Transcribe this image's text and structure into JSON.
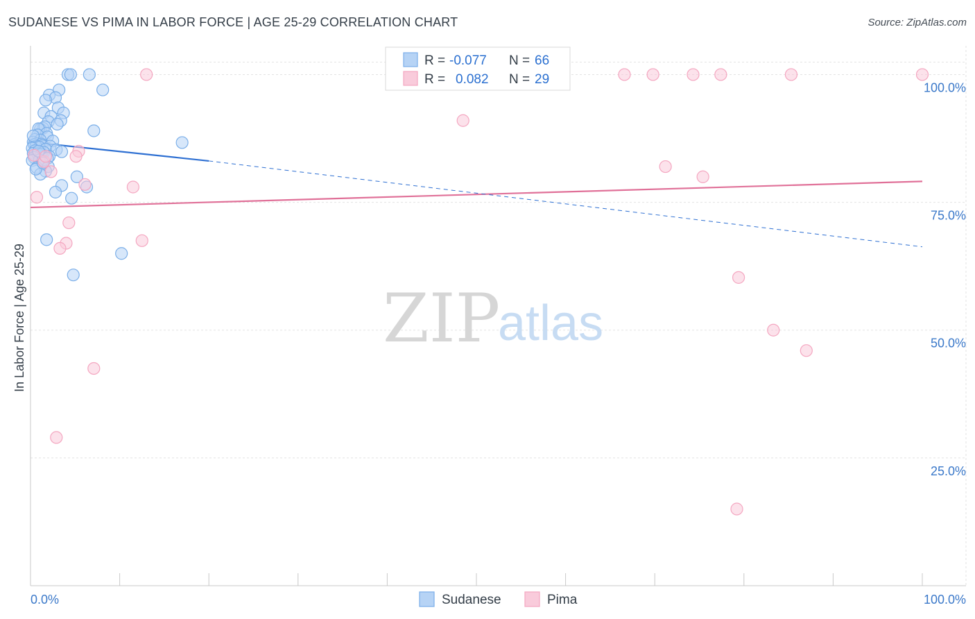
{
  "title": "SUDANESE VS PIMA IN LABOR FORCE | AGE 25-29 CORRELATION CHART",
  "source": "Source: ZipAtlas.com",
  "chart_data": {
    "type": "scatter",
    "title": "SUDANESE VS PIMA IN LABOR FORCE | AGE 25-29 CORRELATION CHART",
    "xlabel": "",
    "ylabel": "In Labor Force | Age 25-29",
    "xlim": [
      0,
      100
    ],
    "ylim": [
      0,
      104
    ],
    "x_tick_labels": [
      "0.0%",
      "100.0%"
    ],
    "y_ticks": [
      25,
      50,
      75,
      100
    ],
    "y_tick_labels": [
      "25.0%",
      "50.0%",
      "75.0%",
      "100.0%"
    ],
    "grid": true,
    "watermark": {
      "zip": "ZIP",
      "atlas": "atlas"
    },
    "legend_top": [
      {
        "series": "Sudanese",
        "r_label": "R =",
        "r": "-0.077",
        "n_label": "N =",
        "n": "66",
        "color": "#7aaee8"
      },
      {
        "series": "Pima",
        "r_label": "R =",
        "r": "0.082",
        "n_label": "N =",
        "n": "29",
        "color": "#f4a6c0"
      }
    ],
    "series": [
      {
        "name": "Sudanese",
        "color": "#7aaee8",
        "fill": "#b6d3f5",
        "line_color": "#2d6fd2",
        "trend": {
          "x0": 0,
          "y0": 86.8,
          "x1": 20,
          "y1": 83.1,
          "dashed_x1": 100,
          "dashed_y1": 66.3
        },
        "points": [
          [
            4.2,
            100
          ],
          [
            4.5,
            100
          ],
          [
            6.6,
            100
          ],
          [
            3.2,
            97
          ],
          [
            8.1,
            97
          ],
          [
            2.1,
            96
          ],
          [
            2.8,
            95.5
          ],
          [
            1.7,
            95
          ],
          [
            3.1,
            93.5
          ],
          [
            1.5,
            92.5
          ],
          [
            3.7,
            92.5
          ],
          [
            2.3,
            91.8
          ],
          [
            3.4,
            91
          ],
          [
            2.0,
            90.8
          ],
          [
            3.0,
            90.3
          ],
          [
            1.4,
            89.5
          ],
          [
            1.1,
            89.3
          ],
          [
            1.6,
            89.8
          ],
          [
            0.9,
            89.4
          ],
          [
            7.1,
            89
          ],
          [
            1.8,
            88.5
          ],
          [
            0.8,
            88.2
          ],
          [
            1.9,
            87.8
          ],
          [
            0.5,
            87.3
          ],
          [
            1.1,
            87.2
          ],
          [
            2.5,
            87.0
          ],
          [
            0.3,
            86.8
          ],
          [
            0.7,
            86.5
          ],
          [
            1.2,
            86.4
          ],
          [
            0.4,
            86.3
          ],
          [
            1.3,
            86.1
          ],
          [
            17.0,
            86.7
          ],
          [
            0.6,
            86.0
          ],
          [
            2.2,
            86.0
          ],
          [
            1.0,
            85.8
          ],
          [
            0.2,
            85.6
          ],
          [
            1.7,
            85.4
          ],
          [
            2.9,
            85.3
          ],
          [
            0.5,
            85.1
          ],
          [
            1.5,
            84.8
          ],
          [
            3.5,
            84.9
          ],
          [
            0.3,
            84.6
          ],
          [
            0.8,
            84.5
          ],
          [
            1.2,
            84.4
          ],
          [
            2.1,
            84.0
          ],
          [
            0.4,
            83.8
          ],
          [
            1.9,
            83.6
          ],
          [
            1.0,
            83.3
          ],
          [
            1.3,
            83.0
          ],
          [
            0.2,
            83.2
          ],
          [
            2.0,
            82.0
          ],
          [
            0.7,
            81.8
          ],
          [
            1.7,
            81.1
          ],
          [
            1.1,
            80.5
          ],
          [
            5.2,
            80.0
          ],
          [
            3.5,
            78.3
          ],
          [
            6.3,
            78.0
          ],
          [
            2.8,
            77.0
          ],
          [
            4.6,
            75.8
          ],
          [
            1.8,
            67.7
          ],
          [
            10.2,
            65.0
          ],
          [
            4.8,
            60.8
          ],
          [
            0.6,
            81.5
          ],
          [
            0.9,
            85.0
          ],
          [
            1.4,
            82.7
          ],
          [
            0.3,
            88.0
          ]
        ]
      },
      {
        "name": "Pima",
        "color": "#f4a6c0",
        "fill": "#f9cbdb",
        "line_color": "#e07098",
        "trend": {
          "x0": 0,
          "y0": 74.0,
          "x1": 100,
          "y1": 79.1
        },
        "points": [
          [
            13,
            100
          ],
          [
            66.6,
            100
          ],
          [
            69.8,
            100
          ],
          [
            74.3,
            100
          ],
          [
            77.4,
            100
          ],
          [
            85.3,
            100
          ],
          [
            100,
            100
          ],
          [
            48.5,
            91
          ],
          [
            5.4,
            85
          ],
          [
            5.1,
            84
          ],
          [
            1.5,
            83
          ],
          [
            2.3,
            81
          ],
          [
            71.2,
            82
          ],
          [
            75.4,
            80
          ],
          [
            6.1,
            78.5
          ],
          [
            11.5,
            78
          ],
          [
            0.7,
            76
          ],
          [
            4.3,
            71
          ],
          [
            4.0,
            67
          ],
          [
            3.3,
            66
          ],
          [
            12.5,
            67.5
          ],
          [
            79.4,
            60.3
          ],
          [
            83.3,
            50
          ],
          [
            87.0,
            46
          ],
          [
            7.1,
            42.5
          ],
          [
            2.9,
            29
          ],
          [
            79.2,
            15
          ],
          [
            0.4,
            84.2
          ],
          [
            1.7,
            84.0
          ]
        ]
      }
    ]
  }
}
